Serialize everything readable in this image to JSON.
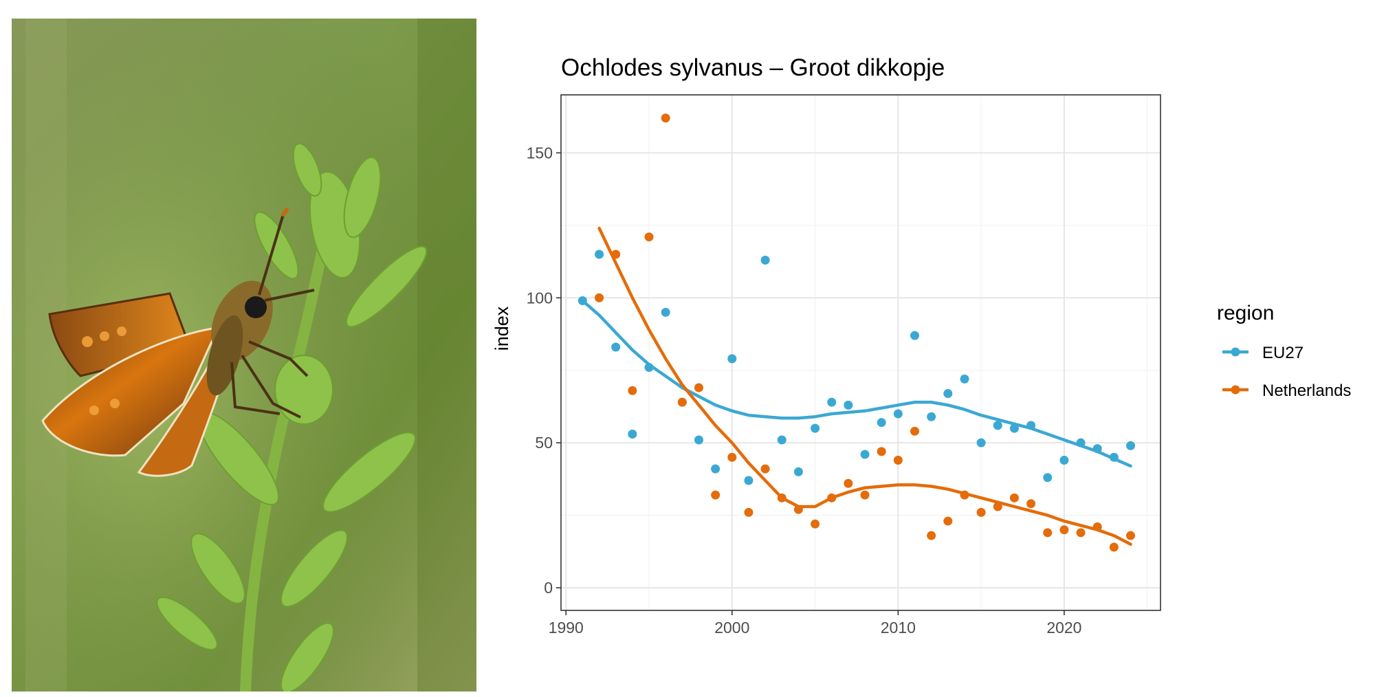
{
  "photo": {
    "subject": "skipper-butterfly-on-plant"
  },
  "chart_data": {
    "type": "scatter",
    "title": "Ochlodes sylvanus – Groot dikkopje",
    "xlabel": "",
    "ylabel": "index",
    "xlim": [
      1989.7,
      2025.8
    ],
    "ylim": [
      -7.8,
      170
    ],
    "x_ticks": [
      1990,
      2000,
      2010,
      2020
    ],
    "y_ticks": [
      0,
      50,
      100,
      150
    ],
    "grid": true,
    "legend": {
      "title": "region",
      "placement": "right"
    },
    "series": [
      {
        "name": "EU27",
        "color": "#3ba8d4",
        "points": [
          [
            1991,
            99
          ],
          [
            1992,
            115
          ],
          [
            1993,
            83
          ],
          [
            1994,
            53
          ],
          [
            1995,
            76
          ],
          [
            1996,
            95
          ],
          [
            1997,
            64
          ],
          [
            1998,
            51
          ],
          [
            1999,
            41
          ],
          [
            2000,
            79
          ],
          [
            2001,
            37
          ],
          [
            2002,
            113
          ],
          [
            2003,
            51
          ],
          [
            2004,
            40
          ],
          [
            2005,
            55
          ],
          [
            2006,
            64
          ],
          [
            2007,
            63
          ],
          [
            2008,
            46
          ],
          [
            2009,
            57
          ],
          [
            2010,
            60
          ],
          [
            2011,
            87
          ],
          [
            2012,
            59
          ],
          [
            2013,
            67
          ],
          [
            2014,
            72
          ],
          [
            2015,
            50
          ],
          [
            2016,
            56
          ],
          [
            2017,
            55
          ],
          [
            2018,
            56
          ],
          [
            2019,
            38
          ],
          [
            2020,
            44
          ],
          [
            2021,
            50
          ],
          [
            2022,
            48
          ],
          [
            2023,
            45
          ],
          [
            2024,
            49
          ]
        ],
        "trend": [
          [
            1991,
            99
          ],
          [
            1992,
            94
          ],
          [
            1993,
            88
          ],
          [
            1994,
            82
          ],
          [
            1995,
            77
          ],
          [
            1996,
            73
          ],
          [
            1997,
            69
          ],
          [
            1998,
            66
          ],
          [
            1999,
            63
          ],
          [
            2000,
            61
          ],
          [
            2001,
            59.5
          ],
          [
            2002,
            59
          ],
          [
            2003,
            58.5
          ],
          [
            2004,
            58.5
          ],
          [
            2005,
            59
          ],
          [
            2006,
            60
          ],
          [
            2007,
            60.5
          ],
          [
            2008,
            61
          ],
          [
            2009,
            62
          ],
          [
            2010,
            63
          ],
          [
            2011,
            64
          ],
          [
            2012,
            64
          ],
          [
            2013,
            63
          ],
          [
            2014,
            61.5
          ],
          [
            2015,
            59.5
          ],
          [
            2016,
            58
          ],
          [
            2017,
            56.5
          ],
          [
            2018,
            55
          ],
          [
            2019,
            53
          ],
          [
            2020,
            51
          ],
          [
            2021,
            49
          ],
          [
            2022,
            47
          ],
          [
            2023,
            44.5
          ],
          [
            2024,
            42
          ]
        ]
      },
      {
        "name": "Netherlands",
        "color": "#e46c0a",
        "points": [
          [
            1992,
            100
          ],
          [
            1993,
            115
          ],
          [
            1994,
            68
          ],
          [
            1995,
            121
          ],
          [
            1996,
            162
          ],
          [
            1997,
            64
          ],
          [
            1998,
            69
          ],
          [
            1999,
            32
          ],
          [
            2000,
            45
          ],
          [
            2001,
            26
          ],
          [
            2002,
            41
          ],
          [
            2003,
            31
          ],
          [
            2004,
            27
          ],
          [
            2005,
            22
          ],
          [
            2006,
            31
          ],
          [
            2007,
            36
          ],
          [
            2008,
            32
          ],
          [
            2009,
            47
          ],
          [
            2010,
            44
          ],
          [
            2011,
            54
          ],
          [
            2012,
            18
          ],
          [
            2013,
            23
          ],
          [
            2014,
            32
          ],
          [
            2015,
            26
          ],
          [
            2016,
            28
          ],
          [
            2017,
            31
          ],
          [
            2018,
            29
          ],
          [
            2019,
            19
          ],
          [
            2020,
            20
          ],
          [
            2021,
            19
          ],
          [
            2022,
            21
          ],
          [
            2023,
            14
          ],
          [
            2024,
            18
          ]
        ],
        "trend": [
          [
            1992,
            124
          ],
          [
            1993,
            112
          ],
          [
            1994,
            100
          ],
          [
            1995,
            89
          ],
          [
            1996,
            79
          ],
          [
            1997,
            70
          ],
          [
            1998,
            63
          ],
          [
            1999,
            56
          ],
          [
            2000,
            50
          ],
          [
            2001,
            43
          ],
          [
            2002,
            37
          ],
          [
            2003,
            31
          ],
          [
            2004,
            28
          ],
          [
            2005,
            28
          ],
          [
            2006,
            31
          ],
          [
            2007,
            33
          ],
          [
            2008,
            34.5
          ],
          [
            2009,
            35
          ],
          [
            2010,
            35.5
          ],
          [
            2011,
            35.5
          ],
          [
            2012,
            35
          ],
          [
            2013,
            34
          ],
          [
            2014,
            32.5
          ],
          [
            2015,
            31
          ],
          [
            2016,
            29.5
          ],
          [
            2017,
            28
          ],
          [
            2018,
            26.5
          ],
          [
            2019,
            25
          ],
          [
            2020,
            23
          ],
          [
            2021,
            21.5
          ],
          [
            2022,
            20
          ],
          [
            2023,
            18
          ],
          [
            2024,
            15
          ]
        ]
      }
    ]
  }
}
